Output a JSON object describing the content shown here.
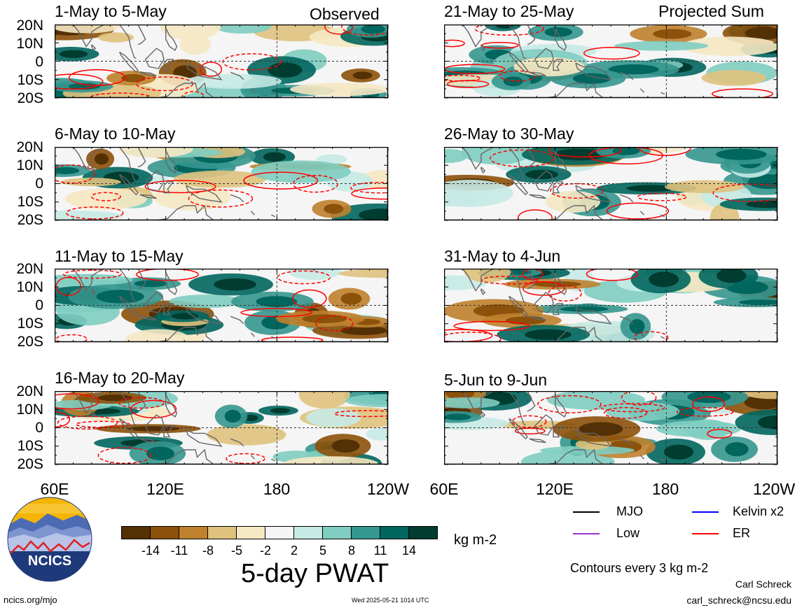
{
  "header": {
    "left_label": "Observed",
    "right_label": "Projected Sum"
  },
  "panels_left": [
    {
      "title": "1-May to 5-May"
    },
    {
      "title": "6-May to 10-May"
    },
    {
      "title": "11-May to 15-May"
    },
    {
      "title": "16-May to 20-May"
    }
  ],
  "panels_right": [
    {
      "title": "21-May to 25-May"
    },
    {
      "title": "26-May to 30-May"
    },
    {
      "title": "31-May to 4-Jun"
    },
    {
      "title": "5-Jun to 9-Jun"
    }
  ],
  "y_tick_labels": [
    "20N",
    "10N",
    "0",
    "10S",
    "20S"
  ],
  "x_tick_labels": [
    "60E",
    "120E",
    "180",
    "120W"
  ],
  "right_x_tick_labels": [
    "60E",
    "120E",
    "180",
    "120W"
  ],
  "colorbar": {
    "tick_labels": [
      "-14",
      "-11",
      "-8",
      "-5",
      "-2",
      "2",
      "5",
      "8",
      "11",
      "14"
    ],
    "units": "kg m-2",
    "title": "5-day PWAT",
    "colors": [
      "#543005",
      "#8c510a",
      "#bf812d",
      "#dfc27d",
      "#f6e8c3",
      "#f5f5f5",
      "#c7eae5",
      "#80cdc1",
      "#35978f",
      "#01665e",
      "#003c30"
    ]
  },
  "legend": {
    "items": [
      {
        "label": "MJO",
        "color": "#000000"
      },
      {
        "label": "Kelvin x2",
        "color": "#0000ff"
      },
      {
        "label": "Low",
        "color": "#9933cc"
      },
      {
        "label": "ER",
        "color": "#ff0000"
      }
    ],
    "note": "Contours every 3 kg m-2"
  },
  "footer": {
    "author": "Carl Schreck",
    "email": "carl_schreck@ncsu.edu",
    "url": "ncics.org/mjo",
    "timestamp": "Wed 2025-05-21 1014 UTC",
    "logo_text": "NCICS"
  },
  "chart_data": [
    {
      "type": "heatmap",
      "title": "1-May to 5-May",
      "xlim": [
        "60E",
        "120W"
      ],
      "ylim": [
        "20S",
        "20N"
      ],
      "variable": "5-day PWAT anomaly",
      "units": "kg m-2",
      "contours": "ER",
      "grid": false
    },
    {
      "type": "heatmap",
      "title": "6-May to 10-May",
      "xlim": [
        "60E",
        "120W"
      ],
      "ylim": [
        "20S",
        "20N"
      ],
      "variable": "5-day PWAT anomaly",
      "units": "kg m-2",
      "contours": "ER",
      "grid": false
    },
    {
      "type": "heatmap",
      "title": "11-May to 15-May",
      "xlim": [
        "60E",
        "120W"
      ],
      "ylim": [
        "20S",
        "20N"
      ],
      "variable": "5-day PWAT anomaly",
      "units": "kg m-2",
      "contours": "ER",
      "grid": false
    },
    {
      "type": "heatmap",
      "title": "16-May to 20-May",
      "xlim": [
        "60E",
        "120W"
      ],
      "ylim": [
        "20S",
        "20N"
      ],
      "variable": "5-day PWAT anomaly",
      "units": "kg m-2",
      "contours": "ER",
      "grid": false
    },
    {
      "type": "heatmap",
      "title": "21-May to 25-May",
      "xlim": [
        "60E",
        "120W"
      ],
      "ylim": [
        "20S",
        "20N"
      ],
      "variable": "5-day PWAT anomaly",
      "units": "kg m-2",
      "contours": "ER",
      "grid": false
    },
    {
      "type": "heatmap",
      "title": "26-May to 30-May",
      "xlim": [
        "60E",
        "120W"
      ],
      "ylim": [
        "20S",
        "20N"
      ],
      "variable": "5-day PWAT anomaly",
      "units": "kg m-2",
      "contours": "ER",
      "grid": false
    },
    {
      "type": "heatmap",
      "title": "31-May to 4-Jun",
      "xlim": [
        "60E",
        "120W"
      ],
      "ylim": [
        "20S",
        "20N"
      ],
      "variable": "5-day PWAT anomaly",
      "units": "kg m-2",
      "contours": "ER",
      "grid": false
    },
    {
      "type": "heatmap",
      "title": "5-Jun to 9-Jun",
      "xlim": [
        "60E",
        "120W"
      ],
      "ylim": [
        "20S",
        "20N"
      ],
      "variable": "5-day PWAT anomaly",
      "units": "kg m-2",
      "contours": "ER",
      "grid": false
    }
  ]
}
